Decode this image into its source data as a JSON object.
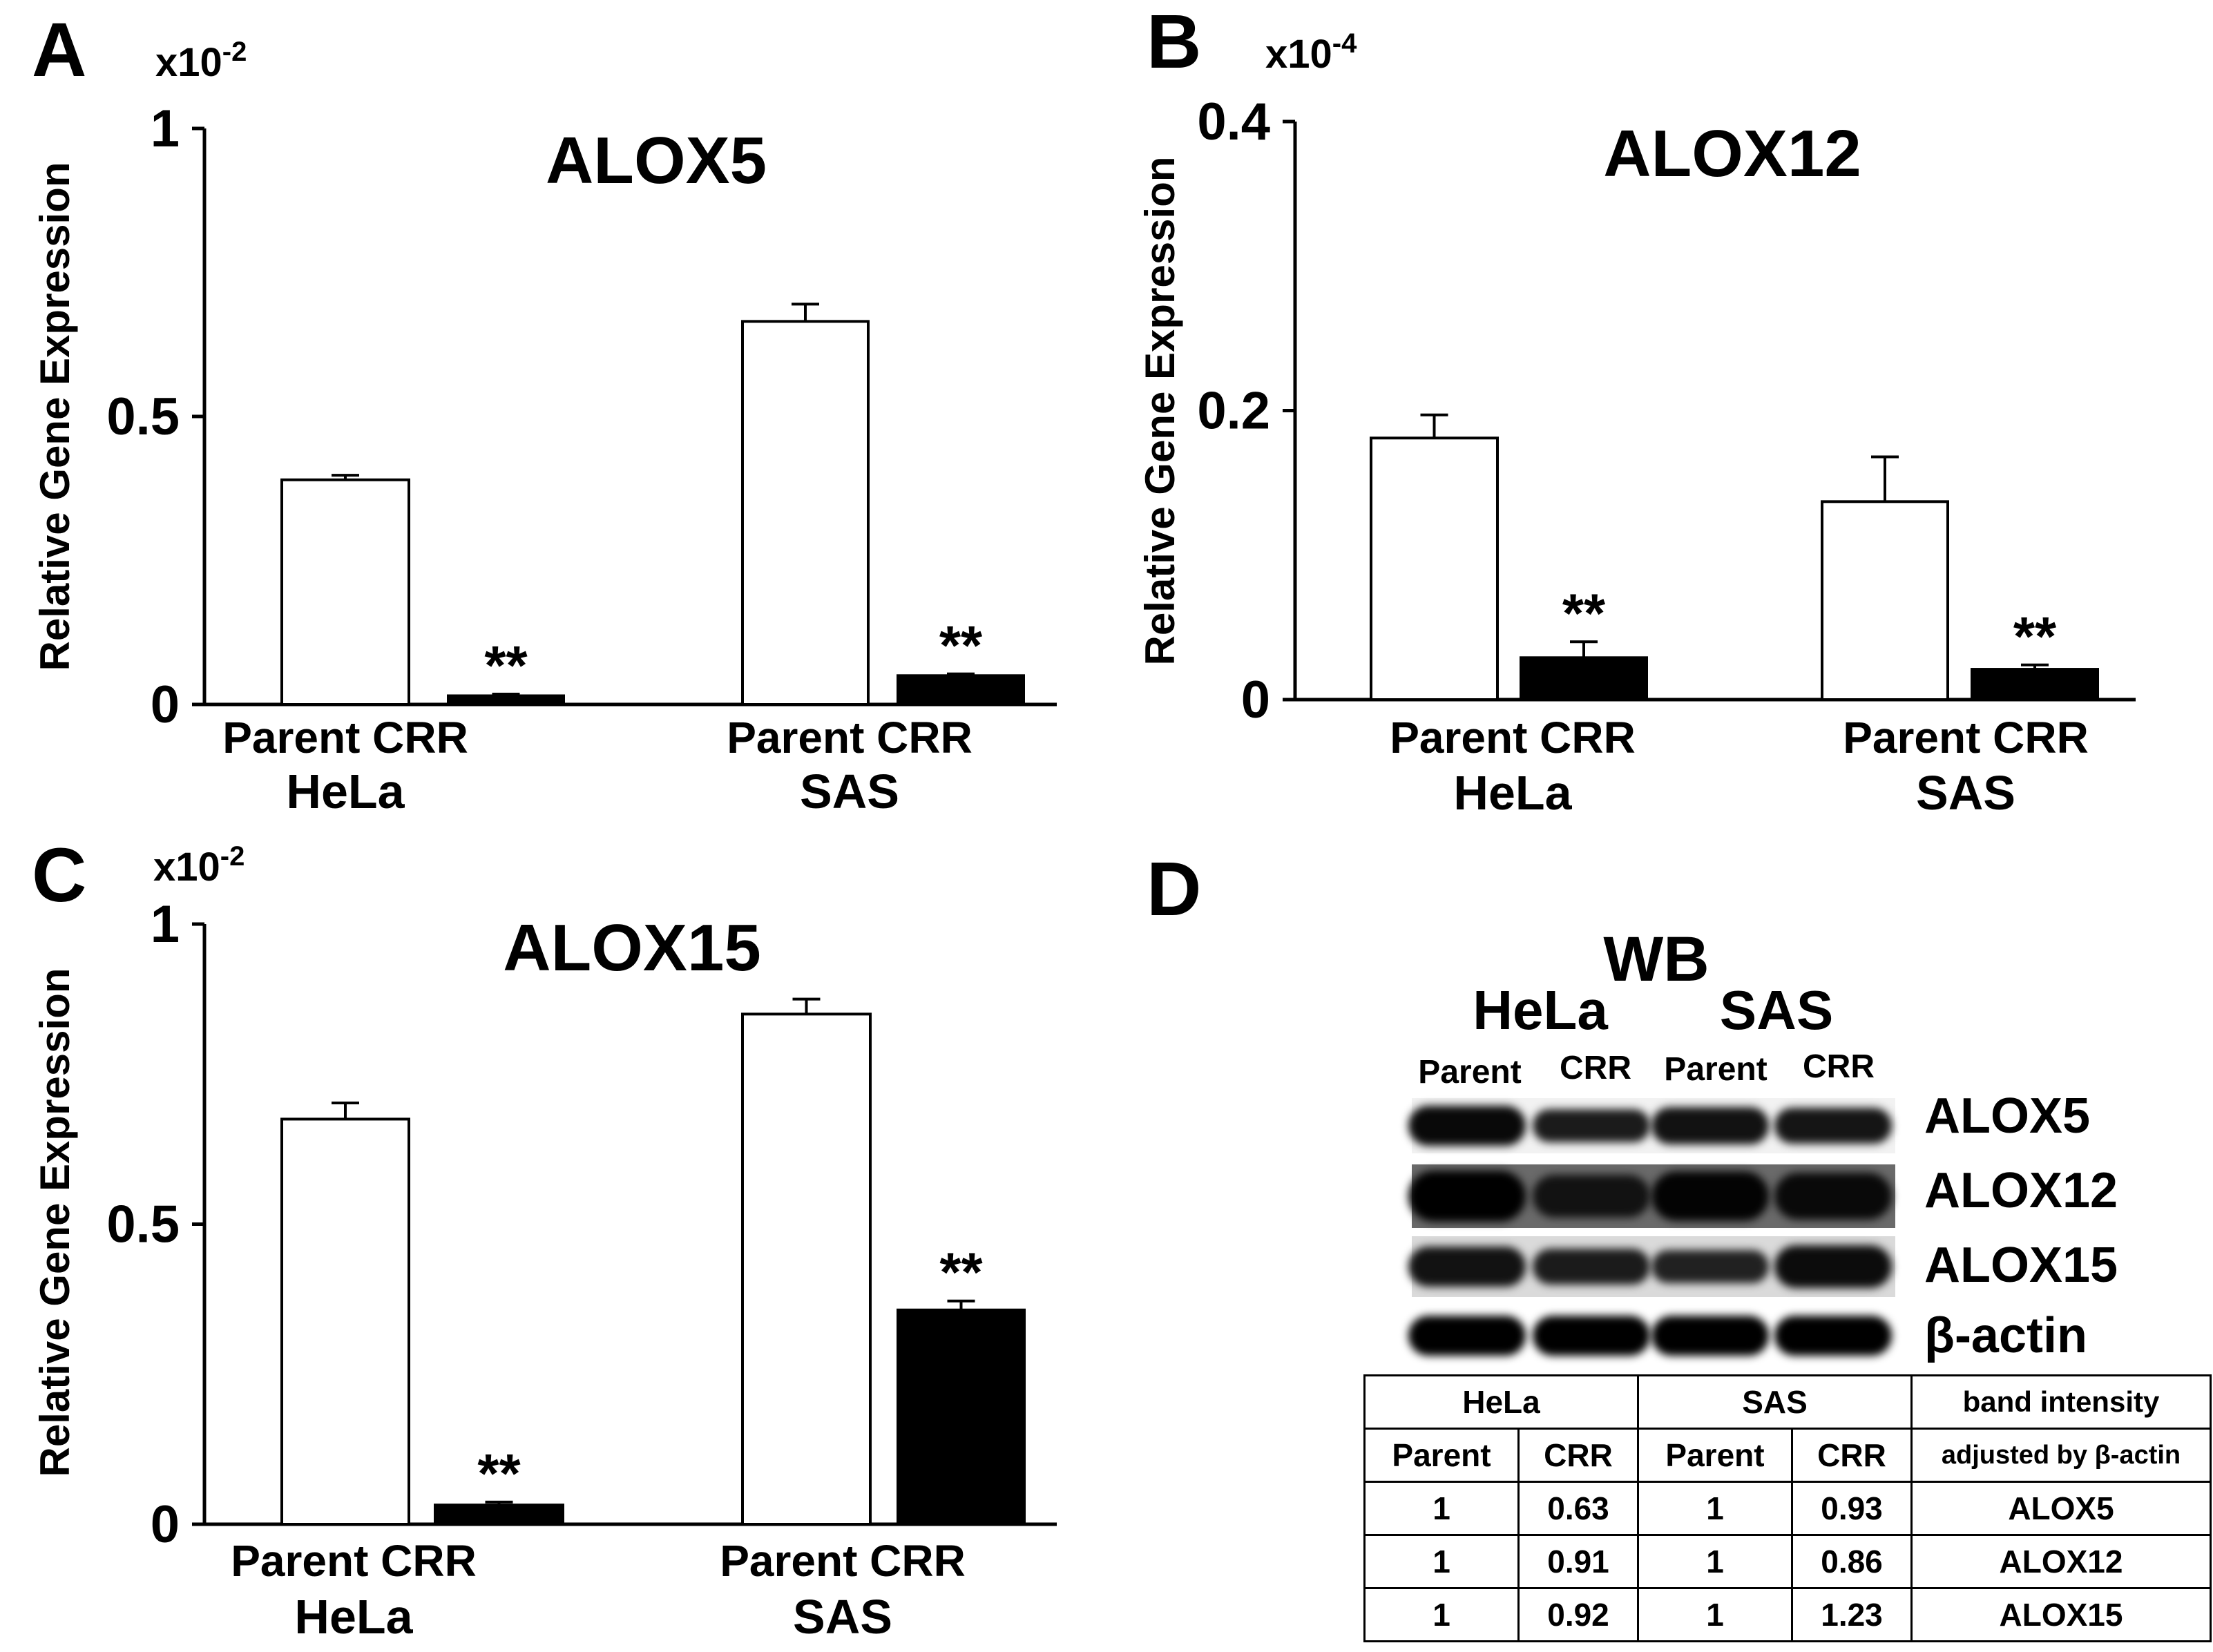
{
  "chart_data": [
    {
      "panel": "A",
      "type": "bar",
      "title": "ALOX5",
      "ylabel": "Relative Gene Expression",
      "yscale": "x10-2",
      "ylim": [
        0,
        1
      ],
      "yticks": [
        "0",
        "0.5",
        "1"
      ],
      "groups": [
        "HeLa",
        "SAS"
      ],
      "categories": [
        "Parent",
        "CRR"
      ],
      "series": [
        {
          "group": "HeLa",
          "values": [
            0.39,
            0.015
          ],
          "errors": [
            0.008,
            0.003
          ],
          "significance": [
            "",
            "**"
          ]
        },
        {
          "group": "SAS",
          "values": [
            0.665,
            0.05
          ],
          "errors": [
            0.03,
            0.003
          ],
          "significance": [
            "",
            "**"
          ]
        }
      ],
      "colors": {
        "Parent": "#ffffff",
        "CRR": "#000000"
      },
      "grid": false
    },
    {
      "panel": "B",
      "type": "bar",
      "title": "ALOX12",
      "ylabel": "Relative Gene Expression",
      "yscale": "x10-4",
      "ylim": [
        0,
        0.4
      ],
      "yticks": [
        "0",
        "0.2",
        "0.4"
      ],
      "groups": [
        "HeLa",
        "SAS"
      ],
      "categories": [
        "Parent",
        "CRR"
      ],
      "series": [
        {
          "group": "HeLa",
          "values": [
            0.181,
            0.029
          ],
          "errors": [
            0.016,
            0.011
          ],
          "significance": [
            "",
            "**"
          ]
        },
        {
          "group": "SAS",
          "values": [
            0.137,
            0.021
          ],
          "errors": [
            0.031,
            0.003
          ],
          "significance": [
            "",
            "**"
          ]
        }
      ],
      "colors": {
        "Parent": "#ffffff",
        "CRR": "#000000"
      },
      "grid": false
    },
    {
      "panel": "C",
      "type": "bar",
      "title": "ALOX15",
      "ylabel": "Relative Gene Expression",
      "yscale": "x10-2",
      "ylim": [
        0,
        1
      ],
      "yticks": [
        "0",
        "0.5",
        "1"
      ],
      "groups": [
        "HeLa",
        "SAS"
      ],
      "categories": [
        "Parent",
        "CRR"
      ],
      "series": [
        {
          "group": "HeLa",
          "values": [
            0.675,
            0.032
          ],
          "errors": [
            0.027,
            0.005
          ],
          "significance": [
            "",
            "**"
          ]
        },
        {
          "group": "SAS",
          "values": [
            0.85,
            0.357
          ],
          "errors": [
            0.025,
            0.015
          ],
          "significance": [
            "",
            "**"
          ]
        }
      ],
      "colors": {
        "Parent": "#ffffff",
        "CRR": "#000000"
      },
      "grid": false
    }
  ],
  "panel_d": {
    "letter": "D",
    "title": "WB",
    "cell_lines": [
      "HeLa",
      "SAS"
    ],
    "lanes": [
      "Parent",
      "CRR",
      "Parent",
      "CRR"
    ],
    "blots": [
      {
        "label": "ALOX5",
        "intensity": [
          0.85,
          0.55,
          0.7,
          0.65
        ],
        "background": "#f2f2f2"
      },
      {
        "label": "ALOX12",
        "intensity": [
          1.0,
          0.7,
          0.95,
          0.85
        ],
        "background": "#6a6a6a"
      },
      {
        "label": "ALOX15",
        "intensity": [
          0.7,
          0.55,
          0.45,
          0.8
        ],
        "background": "#dadada"
      },
      {
        "label": "β-actin",
        "intensity": [
          1.0,
          1.0,
          1.0,
          1.0
        ],
        "background": "#ffffff"
      }
    ],
    "table": {
      "header_top": [
        "HeLa",
        "SAS",
        "band intensity"
      ],
      "header_bottom": [
        "Parent",
        "CRR",
        "Parent",
        "CRR",
        "adjusted by β-actin"
      ],
      "rows": [
        [
          "1",
          "0.63",
          "1",
          "0.93",
          "ALOX5"
        ],
        [
          "1",
          "0.91",
          "1",
          "0.86",
          "ALOX12"
        ],
        [
          "1",
          "0.92",
          "1",
          "1.23",
          "ALOX15"
        ]
      ]
    }
  }
}
